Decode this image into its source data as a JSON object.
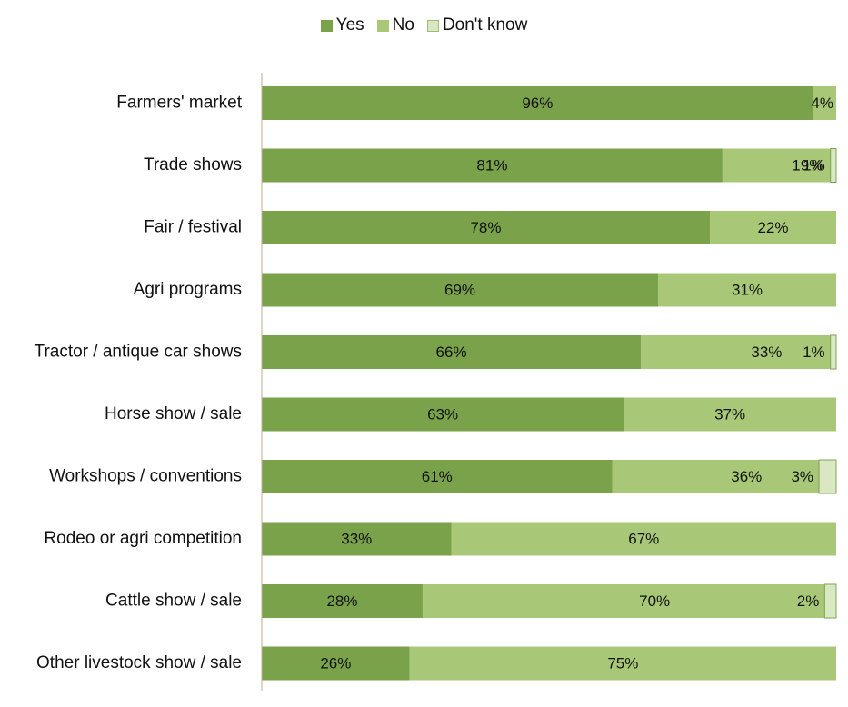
{
  "chart_data": {
    "type": "bar",
    "orientation": "horizontal",
    "stacked": true,
    "title": "",
    "xlabel": "",
    "ylabel": "",
    "legend_position": "top",
    "grid": false,
    "categories": [
      "Farmers' market",
      "Trade shows",
      "Fair / festival",
      "Agri programs",
      "Tractor / antique car shows",
      "Horse show / sale",
      "Workshops / conventions",
      "Rodeo or agri competition",
      "Cattle show / sale",
      "Other livestock show / sale"
    ],
    "series": [
      {
        "name": "Yes",
        "color": "#79a24a",
        "values": [
          96,
          81,
          78,
          69,
          66,
          63,
          61,
          33,
          28,
          26
        ]
      },
      {
        "name": "No",
        "color": "#a8c877",
        "values": [
          4,
          19,
          22,
          31,
          33,
          37,
          36,
          67,
          70,
          75
        ]
      },
      {
        "name": "Don't know",
        "color": "#d9e8c2",
        "values": [
          null,
          1,
          null,
          null,
          1,
          null,
          3,
          null,
          2,
          null
        ]
      }
    ],
    "data_labels": [
      [
        "96%",
        "4%",
        ""
      ],
      [
        "81%",
        "19%",
        "1%"
      ],
      [
        "78%",
        "22%",
        ""
      ],
      [
        "69%",
        "31%",
        ""
      ],
      [
        "66%",
        "33%",
        "1%"
      ],
      [
        "63%",
        "37%",
        ""
      ],
      [
        "61%",
        "36%",
        "3%"
      ],
      [
        "33%",
        "67%",
        ""
      ],
      [
        "28%",
        "70%",
        "2%"
      ],
      [
        "26%",
        "75%",
        ""
      ]
    ]
  }
}
